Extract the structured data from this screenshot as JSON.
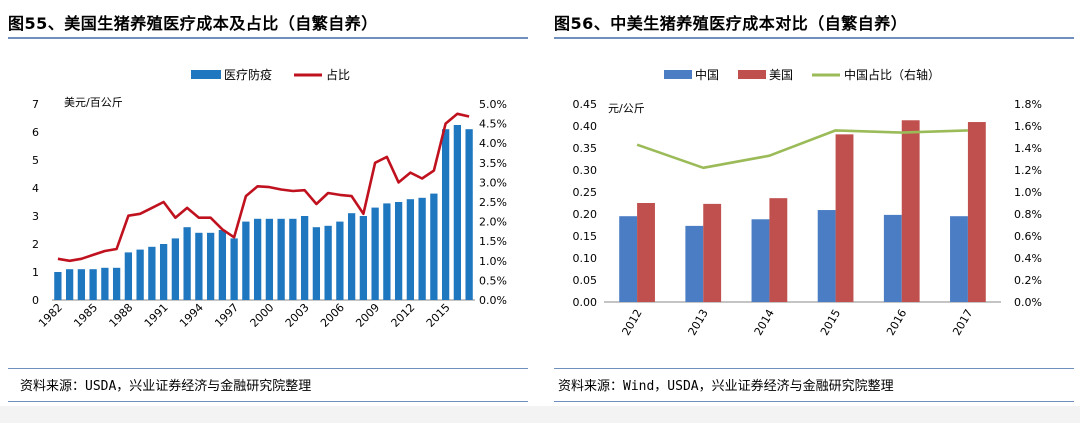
{
  "left": {
    "title": "图55、美国生猪养殖医疗成本及占比（自繁自养）",
    "source": "资料来源：USDA，兴业证券经济与金融研究院整理"
  },
  "right": {
    "title": "图56、中美生猪养殖医疗成本对比（自繁自养）",
    "source": "资料来源：Wind，USDA，兴业证券经济与金融研究院整理"
  },
  "chart_data": [
    {
      "id": "fig55",
      "type": "bar+line",
      "title": "图55、美国生猪养殖医疗成本及占比（自繁自养）",
      "unit_label": "美元/百公斤",
      "categories": [
        1982,
        1983,
        1984,
        1985,
        1986,
        1987,
        1988,
        1989,
        1990,
        1991,
        1992,
        1993,
        1994,
        1995,
        1996,
        1997,
        1998,
        1999,
        2000,
        2001,
        2002,
        2003,
        2004,
        2005,
        2006,
        2007,
        2008,
        2009,
        2010,
        2011,
        2012,
        2013,
        2014,
        2015,
        2016,
        2017
      ],
      "x_tick_labels": [
        "1982",
        "1985",
        "1988",
        "1991",
        "1994",
        "1997",
        "2000",
        "2003",
        "2006",
        "2009",
        "2012",
        "2015"
      ],
      "series": [
        {
          "name": "医疗防疫",
          "kind": "bar",
          "axis": "left",
          "color": "#1f77c0",
          "values": [
            1.0,
            1.1,
            1.1,
            1.1,
            1.15,
            1.15,
            1.7,
            1.8,
            1.9,
            2.0,
            2.2,
            2.6,
            2.4,
            2.4,
            2.5,
            2.2,
            2.8,
            2.9,
            2.9,
            2.9,
            2.9,
            3.0,
            2.6,
            2.65,
            2.8,
            3.1,
            3.0,
            3.3,
            3.45,
            3.5,
            3.6,
            3.65,
            3.8,
            6.1,
            6.25,
            6.1
          ]
        },
        {
          "name": "占比",
          "kind": "line",
          "axis": "right",
          "color": "#c0111f",
          "values": [
            0.0105,
            0.01,
            0.0105,
            0.0115,
            0.0125,
            0.013,
            0.0215,
            0.022,
            0.0235,
            0.025,
            0.021,
            0.0235,
            0.021,
            0.021,
            0.018,
            0.016,
            0.0265,
            0.029,
            0.0288,
            0.0282,
            0.0278,
            0.028,
            0.0245,
            0.0273,
            0.0268,
            0.0265,
            0.022,
            0.035,
            0.0365,
            0.03,
            0.0325,
            0.031,
            0.033,
            0.045,
            0.0475,
            0.0468
          ]
        }
      ],
      "y_left": {
        "min": 0,
        "max": 7,
        "ticks": [
          "0",
          "1",
          "2",
          "3",
          "4",
          "5",
          "6",
          "7"
        ]
      },
      "y_right": {
        "min": 0,
        "max": 0.05,
        "ticks": [
          "0.0%",
          "0.5%",
          "1.0%",
          "1.5%",
          "2.0%",
          "2.5%",
          "3.0%",
          "3.5%",
          "4.0%",
          "4.5%",
          "5.0%"
        ]
      },
      "legend": "top-center"
    },
    {
      "id": "fig56",
      "type": "bar+line",
      "title": "图56、中美生猪养殖医疗成本对比（自繁自养）",
      "unit_label": "元/公斤",
      "categories": [
        "2012",
        "2013",
        "2014",
        "2015",
        "2016",
        "2017"
      ],
      "series": [
        {
          "name": "中国",
          "kind": "bar",
          "axis": "left",
          "color": "#4a7dc4",
          "values": [
            0.195,
            0.173,
            0.188,
            0.209,
            0.198,
            0.195
          ]
        },
        {
          "name": "美国",
          "kind": "bar",
          "axis": "left",
          "color": "#c0504d",
          "values": [
            0.225,
            0.223,
            0.236,
            0.381,
            0.413,
            0.409
          ]
        },
        {
          "name": "中国占比（右轴）",
          "kind": "line",
          "axis": "right",
          "color": "#9bbb59",
          "values": [
            0.0143,
            0.0122,
            0.0133,
            0.0156,
            0.0154,
            0.0156
          ]
        }
      ],
      "y_left": {
        "min": 0,
        "max": 0.45,
        "ticks": [
          "0.00",
          "0.05",
          "0.10",
          "0.15",
          "0.20",
          "0.25",
          "0.30",
          "0.35",
          "0.40",
          "0.45"
        ]
      },
      "y_right": {
        "min": 0,
        "max": 0.018,
        "ticks": [
          "0.0%",
          "0.2%",
          "0.4%",
          "0.6%",
          "0.8%",
          "1.0%",
          "1.2%",
          "1.4%",
          "1.6%",
          "1.8%"
        ]
      },
      "legend": "top-center"
    }
  ]
}
